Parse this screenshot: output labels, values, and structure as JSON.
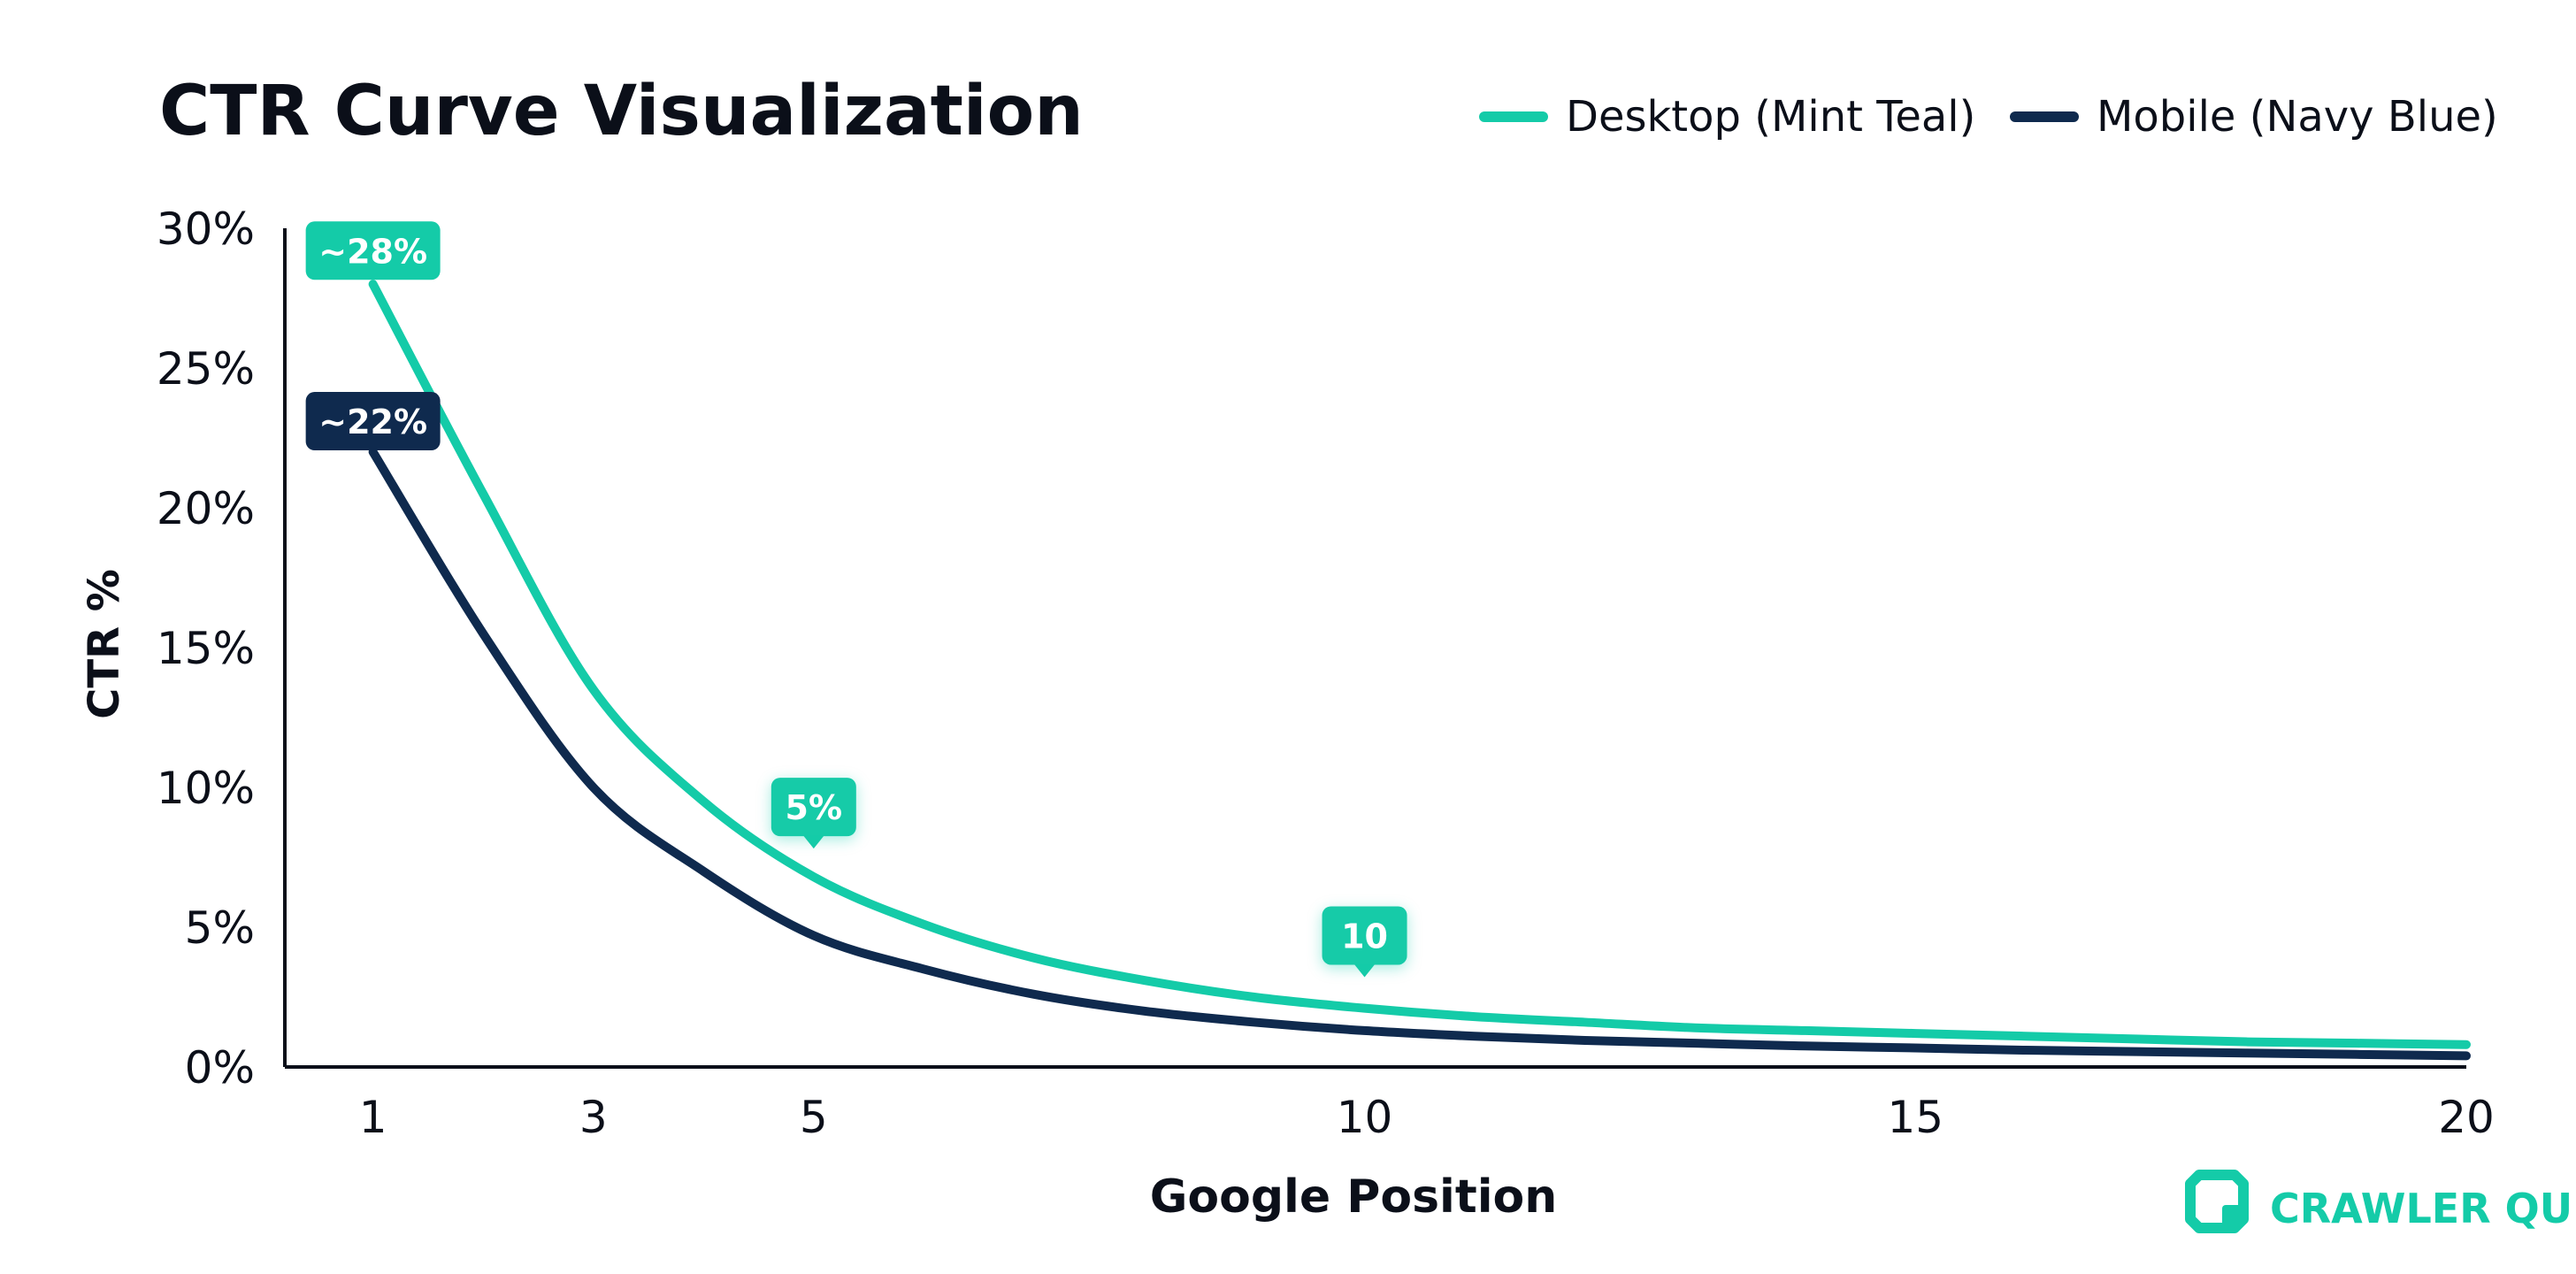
{
  "chart_data": {
    "type": "line",
    "title": "CTR Curve Visualization",
    "xlabel": "Google Position",
    "ylabel": "CTR %",
    "x_ticks": [
      1,
      3,
      5,
      10,
      15,
      20
    ],
    "x_tick_labels": [
      "1",
      "3",
      "5",
      "10",
      "15",
      "20"
    ],
    "y_ticks": [
      0,
      5,
      10,
      15,
      20,
      25,
      30
    ],
    "y_tick_labels": [
      "0%",
      "5%",
      "10%",
      "15%",
      "20%",
      "25%",
      "30%"
    ],
    "xlim": [
      0.2,
      20
    ],
    "ylim": [
      0,
      30
    ],
    "grid": false,
    "legend_position": "top-right",
    "series": [
      {
        "name": "Desktop (Mint Teal)",
        "color": "#14cba8",
        "x": [
          1,
          2,
          3,
          4,
          5,
          6,
          7,
          8,
          9,
          10,
          11,
          12,
          13,
          14,
          15,
          16,
          17,
          18,
          19,
          20
        ],
        "y": [
          28,
          20.5,
          13.5,
          9.5,
          6.8,
          5.1,
          3.9,
          3.1,
          2.5,
          2.1,
          1.8,
          1.6,
          1.4,
          1.3,
          1.2,
          1.1,
          1.0,
          0.9,
          0.85,
          0.8
        ]
      },
      {
        "name": "Mobile (Navy Blue)",
        "color": "#0f2a4e",
        "x": [
          1,
          2,
          3,
          4,
          5,
          6,
          7,
          8,
          9,
          10,
          11,
          12,
          13,
          14,
          15,
          16,
          17,
          18,
          19,
          20
        ],
        "y": [
          22,
          15.5,
          10,
          7,
          4.7,
          3.5,
          2.6,
          2.0,
          1.6,
          1.3,
          1.1,
          0.95,
          0.85,
          0.75,
          0.68,
          0.6,
          0.55,
          0.5,
          0.45,
          0.4
        ]
      }
    ],
    "annotations": [
      {
        "text": "~28%",
        "x": 1,
        "y": 29.2,
        "color": "#14cba8"
      },
      {
        "text": "~22%",
        "x": 1,
        "y": 23.1,
        "color": "#0f2a4e"
      },
      {
        "text": "5%",
        "x": 5,
        "y": 9.3,
        "color": "#14cba8"
      },
      {
        "text": "10",
        "x": 10,
        "y": 4.7,
        "color": "#14cba8"
      }
    ]
  },
  "brand": {
    "name": "CRAWLER QUE",
    "color": "#14cba8"
  }
}
